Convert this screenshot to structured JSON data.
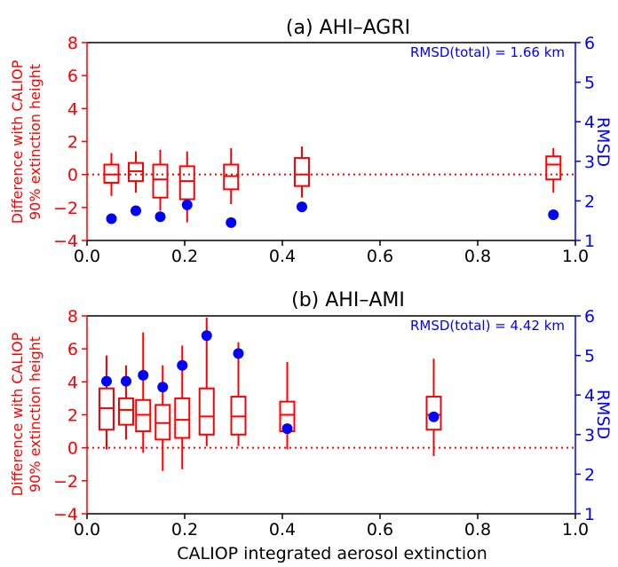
{
  "colors": {
    "left_axis": "#ff0000",
    "right_axis": "#0000ff",
    "box": "#ff0000",
    "point": "#0000ff",
    "frame": "#000000"
  },
  "x_axis_label": "CALIOP integrated aerosol extinction",
  "chart_data": [
    {
      "type": "box",
      "title": "(a) AHI–AGRI",
      "ylabel_left": [
        "Difference with CALIOP",
        "90% extinction height"
      ],
      "ylabel_right": "RMSD",
      "annotation": "RMSD(total) = 1.66 km",
      "xlim": [
        0.0,
        1.0
      ],
      "ylim_left": [
        -4,
        8
      ],
      "ylim_right": [
        1,
        6
      ],
      "x_ticks": [
        "0.0",
        "0.2",
        "0.4",
        "0.6",
        "0.8",
        "1.0"
      ],
      "y_ticks_left": [
        "8",
        "6",
        "4",
        "2",
        "0",
        "−2",
        "−4"
      ],
      "y_ticks_right": [
        "6",
        "5",
        "4",
        "3",
        "2",
        "1"
      ],
      "reference_line_y": 0,
      "boxes": [
        {
          "x": 0.05,
          "whisker_low": -1.3,
          "q1": -0.5,
          "median": 0.0,
          "q3": 0.6,
          "whisker_high": 1.3
        },
        {
          "x": 0.1,
          "whisker_low": -1.1,
          "q1": -0.4,
          "median": 0.2,
          "q3": 0.7,
          "whisker_high": 1.4
        },
        {
          "x": 0.15,
          "whisker_low": -2.2,
          "q1": -1.4,
          "median": -0.3,
          "q3": 0.6,
          "whisker_high": 1.5
        },
        {
          "x": 0.205,
          "whisker_low": -2.9,
          "q1": -1.5,
          "median": -0.4,
          "q3": 0.5,
          "whisker_high": 1.4
        },
        {
          "x": 0.295,
          "whisker_low": -1.8,
          "q1": -0.9,
          "median": -0.1,
          "q3": 0.6,
          "whisker_high": 1.6
        },
        {
          "x": 0.44,
          "whisker_low": -1.4,
          "q1": -0.7,
          "median": 0.0,
          "q3": 1.0,
          "whisker_high": 1.7
        },
        {
          "x": 0.955,
          "whisker_low": -1.1,
          "q1": -0.3,
          "median": 0.6,
          "q3": 1.1,
          "whisker_high": 1.6
        }
      ],
      "rmsd_points": [
        {
          "x": 0.05,
          "y": 1.55
        },
        {
          "x": 0.1,
          "y": 1.75
        },
        {
          "x": 0.15,
          "y": 1.6
        },
        {
          "x": 0.205,
          "y": 1.9
        },
        {
          "x": 0.295,
          "y": 1.45
        },
        {
          "x": 0.44,
          "y": 1.85
        },
        {
          "x": 0.955,
          "y": 1.65
        }
      ]
    },
    {
      "type": "box",
      "title": "(b) AHI–AMI",
      "ylabel_left": [
        "Difference with CALIOP",
        "90% extinction height"
      ],
      "ylabel_right": "RMSD",
      "annotation": "RMSD(total) = 4.42 km",
      "xlim": [
        0.0,
        1.0
      ],
      "ylim_left": [
        -4,
        8
      ],
      "ylim_right": [
        1,
        6
      ],
      "x_ticks": [
        "0.0",
        "0.2",
        "0.4",
        "0.6",
        "0.8",
        "1.0"
      ],
      "y_ticks_left": [
        "8",
        "6",
        "4",
        "2",
        "0",
        "−2",
        "−4"
      ],
      "y_ticks_right": [
        "6",
        "5",
        "4",
        "3",
        "2",
        "1"
      ],
      "reference_line_y": 0,
      "boxes": [
        {
          "x": 0.04,
          "whisker_low": -0.1,
          "q1": 1.1,
          "median": 2.4,
          "q3": 3.6,
          "whisker_high": 5.6
        },
        {
          "x": 0.08,
          "whisker_low": 0.5,
          "q1": 1.4,
          "median": 2.3,
          "q3": 3.0,
          "whisker_high": 5.0
        },
        {
          "x": 0.115,
          "whisker_low": -0.3,
          "q1": 1.0,
          "median": 2.0,
          "q3": 2.9,
          "whisker_high": 7.0
        },
        {
          "x": 0.155,
          "whisker_low": -1.4,
          "q1": 0.5,
          "median": 1.5,
          "q3": 2.6,
          "whisker_high": 5.0
        },
        {
          "x": 0.195,
          "whisker_low": -1.3,
          "q1": 0.6,
          "median": 1.7,
          "q3": 3.0,
          "whisker_high": 6.2
        },
        {
          "x": 0.245,
          "whisker_low": 0.1,
          "q1": 0.8,
          "median": 1.9,
          "q3": 3.6,
          "whisker_high": 7.9
        },
        {
          "x": 0.31,
          "whisker_low": 0.1,
          "q1": 0.8,
          "median": 1.9,
          "q3": 3.1,
          "whisker_high": 6.4
        },
        {
          "x": 0.41,
          "whisker_low": -0.1,
          "q1": 1.0,
          "median": 2.0,
          "q3": 2.8,
          "whisker_high": 5.2
        },
        {
          "x": 0.71,
          "whisker_low": -0.5,
          "q1": 1.1,
          "median": 2.0,
          "q3": 3.1,
          "whisker_high": 5.4
        }
      ],
      "rmsd_points": [
        {
          "x": 0.04,
          "y": 4.35
        },
        {
          "x": 0.08,
          "y": 4.35
        },
        {
          "x": 0.115,
          "y": 4.5
        },
        {
          "x": 0.155,
          "y": 4.2
        },
        {
          "x": 0.195,
          "y": 4.75
        },
        {
          "x": 0.245,
          "y": 5.5
        },
        {
          "x": 0.31,
          "y": 5.05
        },
        {
          "x": 0.41,
          "y": 3.15
        },
        {
          "x": 0.71,
          "y": 3.45
        }
      ]
    }
  ]
}
